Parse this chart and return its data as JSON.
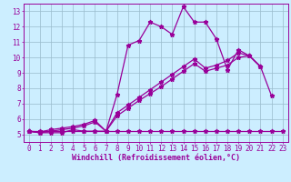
{
  "xlabel": "Windchill (Refroidissement éolien,°C)",
  "bg_color": "#cceeff",
  "line_color": "#990099",
  "xlim": [
    -0.5,
    23.5
  ],
  "ylim": [
    4.5,
    13.5
  ],
  "xticks": [
    0,
    1,
    2,
    3,
    4,
    5,
    6,
    7,
    8,
    9,
    10,
    11,
    12,
    13,
    14,
    15,
    16,
    17,
    18,
    19,
    20,
    21,
    22,
    23
  ],
  "yticks": [
    5,
    6,
    7,
    8,
    9,
    10,
    11,
    12,
    13
  ],
  "grid_color": "#99bbcc",
  "series1_x": [
    0,
    1,
    2,
    3,
    4,
    5,
    6,
    7,
    8,
    9,
    10,
    11,
    12,
    13,
    14,
    15,
    16,
    17,
    18,
    19,
    20,
    21,
    22
  ],
  "series1_y": [
    5.2,
    5.1,
    5.1,
    5.1,
    5.3,
    5.2,
    5.2,
    5.2,
    7.6,
    10.8,
    11.1,
    12.3,
    12.0,
    11.5,
    13.3,
    12.3,
    12.3,
    11.2,
    9.2,
    10.5,
    10.1,
    9.4,
    7.5
  ],
  "series2_x": [
    0,
    1,
    2,
    3,
    4,
    5,
    6,
    7,
    8,
    9,
    10,
    11,
    12,
    13,
    14,
    15,
    16,
    17,
    18,
    19,
    20,
    21
  ],
  "series2_y": [
    5.2,
    5.15,
    5.3,
    5.4,
    5.5,
    5.65,
    5.9,
    5.2,
    6.4,
    6.9,
    7.4,
    7.9,
    8.4,
    8.9,
    9.4,
    9.9,
    9.3,
    9.5,
    9.8,
    10.3,
    10.1,
    9.4
  ],
  "series3_x": [
    0,
    1,
    2,
    3,
    4,
    5,
    6,
    7,
    8,
    9,
    10,
    11,
    12,
    13,
    14,
    15,
    16,
    17,
    18,
    19,
    20,
    21
  ],
  "series3_y": [
    5.2,
    5.1,
    5.2,
    5.3,
    5.4,
    5.55,
    5.8,
    5.2,
    6.2,
    6.7,
    7.2,
    7.65,
    8.1,
    8.6,
    9.1,
    9.6,
    9.1,
    9.3,
    9.5,
    10.0,
    10.1,
    9.4
  ],
  "series4_x": [
    0,
    1,
    2,
    3,
    4,
    5,
    6,
    7,
    8,
    9,
    10,
    11,
    12,
    13,
    14,
    15,
    16,
    17,
    18,
    19,
    20,
    21,
    22,
    23
  ],
  "series4_y": [
    5.2,
    5.2,
    5.2,
    5.2,
    5.2,
    5.2,
    5.2,
    5.2,
    5.2,
    5.2,
    5.2,
    5.2,
    5.2,
    5.2,
    5.2,
    5.2,
    5.2,
    5.2,
    5.2,
    5.2,
    5.2,
    5.2,
    5.2,
    5.2
  ],
  "xlabel_fontsize": 6,
  "tick_fontsize": 5.5
}
